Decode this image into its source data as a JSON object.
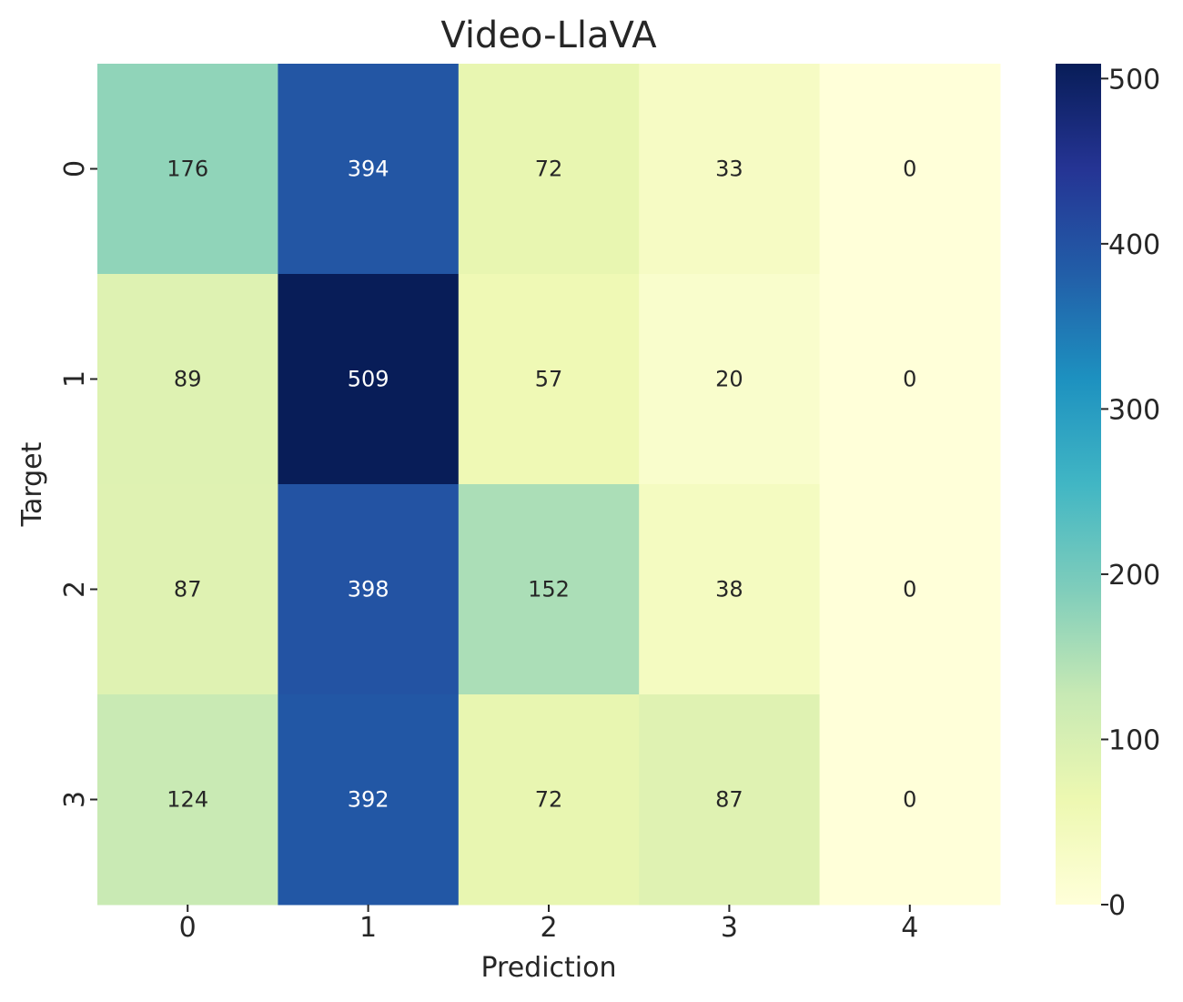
{
  "chart_data": {
    "type": "heatmap",
    "title": "Video-LlaVA",
    "xlabel": "Prediction",
    "ylabel": "Target",
    "x_categories": [
      "0",
      "1",
      "2",
      "3",
      "4"
    ],
    "y_categories": [
      "0",
      "1",
      "2",
      "3"
    ],
    "values": [
      [
        176,
        394,
        72,
        33,
        0
      ],
      [
        89,
        509,
        57,
        20,
        0
      ],
      [
        87,
        398,
        152,
        38,
        0
      ],
      [
        124,
        392,
        72,
        87,
        0
      ]
    ],
    "colormap": "YlGnBu",
    "colorbar": {
      "range": [
        0,
        509
      ],
      "ticks": [
        0,
        100,
        200,
        300,
        400,
        500
      ],
      "tick_labels": [
        "0",
        "100",
        "200",
        "300",
        "400",
        "500"
      ]
    },
    "annotation_colors": {
      "dark": "#262626",
      "light": "#ffffff"
    },
    "grid": false
  }
}
